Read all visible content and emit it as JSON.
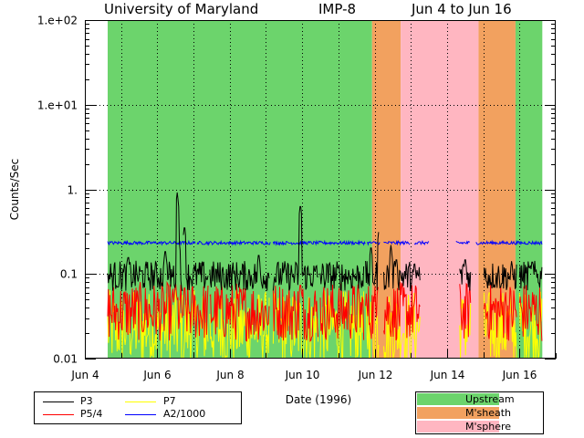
{
  "title": {
    "institution": "University of Maryland",
    "spacecraft": "IMP-8",
    "date_range": "Jun 4 to Jun 16"
  },
  "chart_data": {
    "type": "line",
    "xlabel": "Date (1996)",
    "ylabel": "Counts/Sec",
    "yscale": "log",
    "ylim": [
      0.01,
      100
    ],
    "xlim": [
      4.0,
      17.0
    ],
    "grid": true,
    "x_ticks": [
      {
        "value": 4,
        "label": "Jun 4"
      },
      {
        "value": 6,
        "label": "Jun 6"
      },
      {
        "value": 8,
        "label": "Jun 8"
      },
      {
        "value": 10,
        "label": "Jun 10"
      },
      {
        "value": 12,
        "label": "Jun 12"
      },
      {
        "value": 14,
        "label": "Jun 14"
      },
      {
        "value": 16,
        "label": "Jun 16"
      }
    ],
    "y_ticks": [
      {
        "value": 0.01,
        "label": "0.01"
      },
      {
        "value": 0.1,
        "label": "0.1"
      },
      {
        "value": 1,
        "label": "1."
      },
      {
        "value": 10,
        "label": "1.e+01"
      },
      {
        "value": 100,
        "label": "1.e+02"
      }
    ],
    "regions": [
      {
        "name": "Upstream",
        "start": 4.63,
        "end": 11.93
      },
      {
        "name": "M'sheath",
        "start": 11.93,
        "end": 12.72
      },
      {
        "name": "M'sphere",
        "start": 12.72,
        "end": 14.87
      },
      {
        "name": "M'sheath",
        "start": 14.87,
        "end": 15.89
      },
      {
        "name": "Upstream",
        "start": 15.89,
        "end": 16.63
      }
    ],
    "region_colors": {
      "Upstream": "#6cd46c",
      "M'sheath": "#f2a15f",
      "M'sphere": "#ffb6c1"
    },
    "series": [
      {
        "name": "P3",
        "color": "#000000",
        "segments": [
          [
            4.63,
            6.7
          ],
          [
            6.72,
            7.4
          ],
          [
            7.45,
            9.1
          ],
          [
            9.2,
            10.45
          ],
          [
            10.5,
            11.7
          ],
          [
            11.75,
            12.12
          ],
          [
            12.25,
            13.25
          ],
          [
            14.35,
            14.65
          ],
          [
            15.02,
            15.92
          ],
          [
            16.0,
            16.63
          ]
        ],
        "baseline": 0.095,
        "spread": 0.18,
        "spikes": [
          {
            "x": 5.2,
            "y": 0.17
          },
          {
            "x": 6.22,
            "y": 0.2
          },
          {
            "x": 6.55,
            "y": 0.92
          },
          {
            "x": 6.75,
            "y": 0.38
          },
          {
            "x": 6.6,
            "y": 0.25
          },
          {
            "x": 8.8,
            "y": 0.18
          },
          {
            "x": 9.95,
            "y": 0.68
          },
          {
            "x": 11.9,
            "y": 0.22
          },
          {
            "x": 12.12,
            "y": 0.34
          },
          {
            "x": 12.45,
            "y": 0.22
          },
          {
            "x": 12.6,
            "y": 0.16
          },
          {
            "x": 14.5,
            "y": 0.16
          },
          {
            "x": 16.35,
            "y": 0.15
          }
        ]
      },
      {
        "name": "P5/4",
        "color": "#ff0000",
        "segments": [
          [
            4.63,
            6.7
          ],
          [
            6.72,
            7.4
          ],
          [
            7.45,
            9.1
          ],
          [
            9.2,
            10.45
          ],
          [
            10.5,
            11.7
          ],
          [
            11.75,
            12.12
          ],
          [
            12.25,
            13.25
          ],
          [
            14.35,
            14.65
          ],
          [
            15.02,
            15.92
          ],
          [
            16.0,
            16.63
          ]
        ],
        "baseline": 0.036,
        "spread": 0.35,
        "spikes": [
          {
            "x": 6.5,
            "y": 0.075
          },
          {
            "x": 9.95,
            "y": 0.08
          },
          {
            "x": 12.1,
            "y": 0.075
          },
          {
            "x": 14.68,
            "y": 0.06
          },
          {
            "x": 15.6,
            "y": 0.05
          }
        ]
      },
      {
        "name": "P7",
        "color": "#ffff00",
        "segments": [
          [
            4.63,
            6.7
          ],
          [
            6.72,
            7.4
          ],
          [
            7.45,
            9.1
          ],
          [
            9.2,
            10.45
          ],
          [
            10.5,
            11.7
          ],
          [
            11.75,
            12.12
          ],
          [
            12.25,
            13.25
          ],
          [
            14.35,
            14.65
          ],
          [
            15.02,
            15.92
          ],
          [
            16.0,
            16.63
          ]
        ],
        "baseline": 0.023,
        "spread": 0.45,
        "spikes": []
      },
      {
        "name": "A2/1000",
        "color": "#0000ff",
        "segments": [
          [
            4.63,
            7.05
          ],
          [
            7.1,
            9.12
          ],
          [
            9.2,
            11.75
          ],
          [
            11.8,
            12.15
          ],
          [
            12.25,
            12.98
          ],
          [
            13.1,
            13.5
          ],
          [
            14.25,
            14.63
          ],
          [
            14.8,
            16.63
          ]
        ],
        "baseline": 0.233,
        "spread": 0.02,
        "spikes": []
      }
    ]
  },
  "legend": {
    "series": [
      {
        "label": "P3",
        "color": "#000000"
      },
      {
        "label": "P7",
        "color": "#ffff00"
      },
      {
        "label": "P5/4",
        "color": "#ff0000"
      },
      {
        "label": "A2/1000",
        "color": "#0000ff"
      }
    ],
    "regions": [
      {
        "label": "Upstream",
        "color": "#6cd46c"
      },
      {
        "label": "M'sheath",
        "color": "#f2a15f"
      },
      {
        "label": "M'sphere",
        "color": "#ffb6c1"
      }
    ]
  }
}
